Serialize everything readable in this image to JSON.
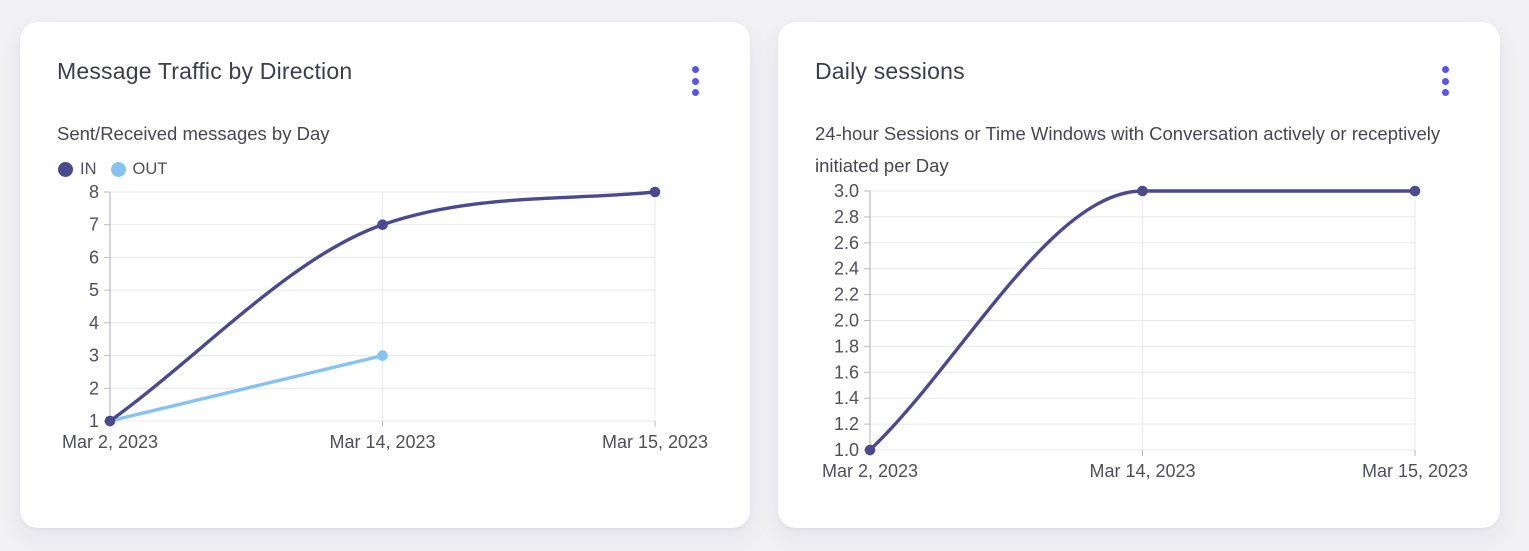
{
  "page": {
    "background": "#f1f1f4"
  },
  "colors": {
    "accent": "#5b52e8",
    "card_bg": "#ffffff",
    "title_text": "#3d3d4c",
    "subtitle_text": "#47474f",
    "axis_text": "#4f4f59",
    "grid": "#e8e8ec",
    "axis_line": "#b9b9c2",
    "series_in": "#4b4a8f",
    "series_out": "#86c3f1"
  },
  "cards": [
    {
      "title": "Message Traffic by Direction",
      "subtitle": "Sent/Received messages by Day",
      "menu_icon": "kebab-vertical-icon"
    },
    {
      "title": "Daily sessions",
      "subtitle": "24-hour Sessions or Time Windows with Conversation actively or receptively initiated per Day",
      "menu_icon": "kebab-vertical-icon"
    }
  ],
  "chart_data": [
    {
      "type": "line",
      "title": "Message Traffic by Direction",
      "subtitle": "Sent/Received messages by Day",
      "categories": [
        "Mar 2, 2023",
        "Mar 14, 2023",
        "Mar 15, 2023"
      ],
      "series": [
        {
          "name": "IN",
          "color": "#4b4a8f",
          "values": [
            1,
            7,
            8
          ]
        },
        {
          "name": "OUT",
          "color": "#86c3f1",
          "values": [
            1,
            3,
            null
          ]
        }
      ],
      "xlabel": "",
      "ylabel": "",
      "ylim": [
        1,
        8
      ],
      "yticks": [
        "1",
        "2",
        "3",
        "4",
        "5",
        "6",
        "7",
        "8"
      ],
      "grid": true,
      "smooth": true,
      "legend": {
        "position": "top-left",
        "entries": [
          "IN",
          "OUT"
        ]
      }
    },
    {
      "type": "line",
      "title": "Daily sessions",
      "subtitle": "24-hour Sessions or Time Windows with Conversation actively or receptively initiated per Day",
      "categories": [
        "Mar 2, 2023",
        "Mar 14, 2023",
        "Mar 15, 2023"
      ],
      "series": [
        {
          "name": "Daily sessions",
          "color": "#4b4a8f",
          "values": [
            1.0,
            3.0,
            3.0
          ]
        }
      ],
      "xlabel": "",
      "ylabel": "",
      "ylim": [
        1.0,
        3.0
      ],
      "yticks": [
        "1.0",
        "1.2",
        "1.4",
        "1.6",
        "1.8",
        "2.0",
        "2.2",
        "2.4",
        "2.6",
        "2.8",
        "3.0"
      ],
      "grid": true,
      "smooth": true,
      "legend": null
    }
  ]
}
